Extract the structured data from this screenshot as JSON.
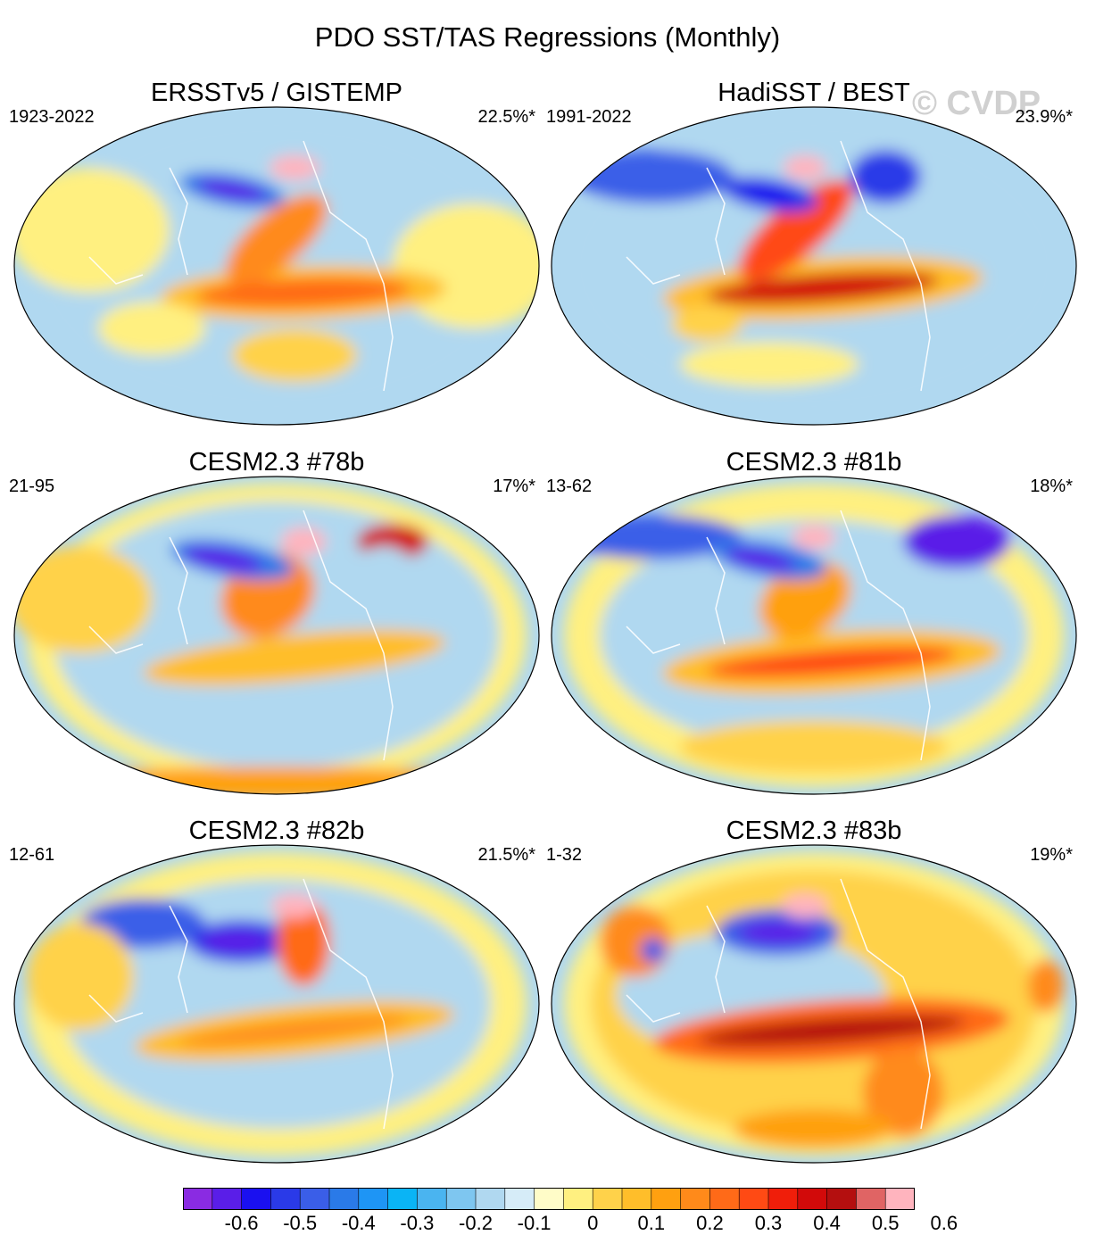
{
  "title": "PDO SST/TAS Regressions (Monthly)",
  "watermark": "© CVDP",
  "panels": [
    {
      "title": "ERSSTv5 / GISTEMP",
      "years": "1923-2022",
      "percent": "22.5%*",
      "col": 0,
      "row": 0,
      "variant": 0
    },
    {
      "title": "HadiSST / BEST",
      "years": "1991-2022",
      "percent": "23.9%*",
      "col": 1,
      "row": 0,
      "variant": 1
    },
    {
      "title": "CESM2.3 #78b",
      "years": "21-95",
      "percent": "17%*",
      "col": 0,
      "row": 1,
      "variant": 2
    },
    {
      "title": "CESM2.3 #81b",
      "years": "13-62",
      "percent": "18%*",
      "col": 1,
      "row": 1,
      "variant": 3
    },
    {
      "title": "CESM2.3 #82b",
      "years": "12-61",
      "percent": "21.5%*",
      "col": 0,
      "row": 2,
      "variant": 4
    },
    {
      "title": "CESM2.3 #83b",
      "years": "1-32",
      "percent": "19%*",
      "col": 1,
      "row": 2,
      "variant": 5
    }
  ],
  "colorbar": {
    "colors": [
      "#8a2be2",
      "#5a1ee8",
      "#1a10f0",
      "#2a3ae8",
      "#3a5ee8",
      "#2a7ae8",
      "#1e95f5",
      "#0ab4f5",
      "#4ab4f0",
      "#7ec6f0",
      "#b0d8f0",
      "#d6ecf8",
      "#fffcc8",
      "#fff080",
      "#ffd24a",
      "#ffbe2a",
      "#ffa010",
      "#ff8a1a",
      "#ff6a18",
      "#ff4a14",
      "#f01e0a",
      "#d20a0a",
      "#b40f0f",
      "#e06464",
      "#ffb4be"
    ],
    "labels": [
      "-0.6",
      "-0.5",
      "-0.4",
      "-0.3",
      "-0.2",
      "-0.1",
      "0",
      "0.1",
      "0.2",
      "0.3",
      "0.4",
      "0.5",
      "0.6"
    ]
  }
}
